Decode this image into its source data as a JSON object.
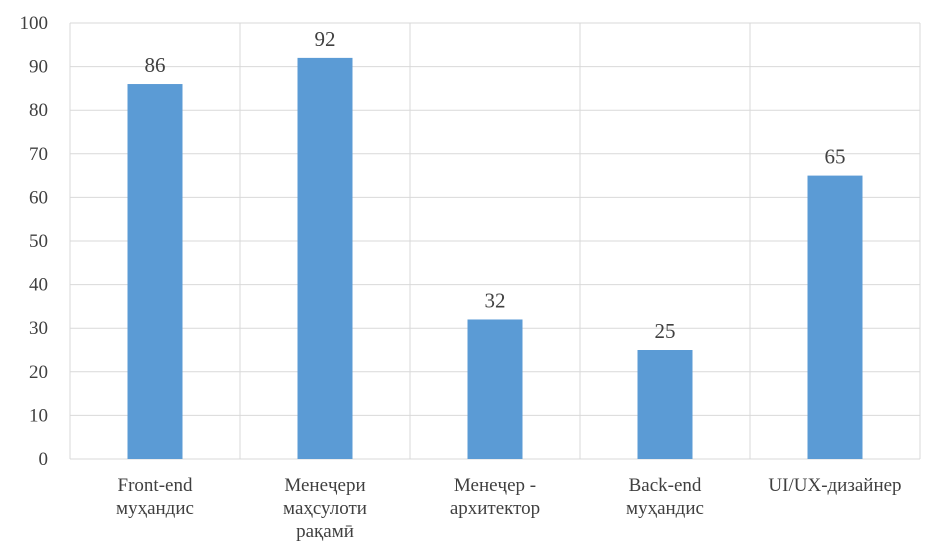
{
  "chart_data": {
    "type": "bar",
    "categories": [
      [
        "Front-end",
        "муҳандис"
      ],
      [
        "Менеҷери",
        "маҳсулоти",
        "рақамӣ"
      ],
      [
        "Менеҷер -",
        "архитектор"
      ],
      [
        "Back-end",
        "муҳандис"
      ],
      [
        "UI/UX-дизайнер"
      ]
    ],
    "values": [
      86,
      92,
      32,
      25,
      65
    ],
    "ylim": [
      0,
      100
    ],
    "yticks": [
      0,
      10,
      20,
      30,
      40,
      50,
      60,
      70,
      80,
      90,
      100
    ],
    "grid": true,
    "legend": "none",
    "bar_color": "#5b9bd5",
    "grid_color": "#d9d9d9"
  }
}
